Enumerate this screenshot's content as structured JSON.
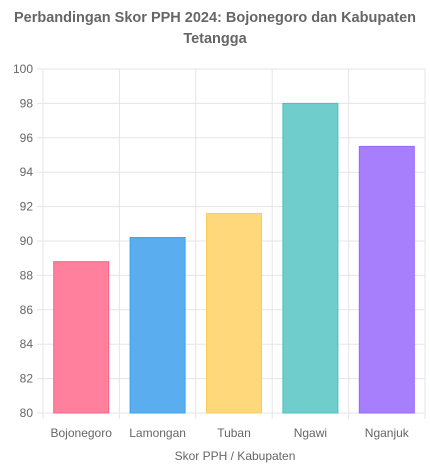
{
  "chart_data": {
    "type": "bar",
    "title_lines": [
      "Perbandingan Skor PPH 2024: Bojonegoro dan Kabupaten",
      "Tetangga"
    ],
    "xlabel": "Skor PPH / Kabupaten",
    "ylabel": "",
    "categories": [
      "Bojonegoro",
      "Lamongan",
      "Tuban",
      "Ngawi",
      "Nganjuk"
    ],
    "values": [
      88.8,
      90.2,
      91.6,
      98.0,
      95.5
    ],
    "ylim": [
      80,
      100
    ],
    "yticks": [
      80,
      82,
      84,
      86,
      88,
      90,
      92,
      94,
      96,
      98,
      100
    ],
    "grid": true,
    "legend": "none",
    "colors": {
      "fills": [
        "#ff809c",
        "#5aaef0",
        "#fed87a",
        "#6fcdcb",
        "#a77ffd"
      ],
      "strokes": [
        "#ff6384",
        "#36a2eb",
        "#ffcd56",
        "#4bc0c0",
        "#9966ff"
      ]
    }
  }
}
